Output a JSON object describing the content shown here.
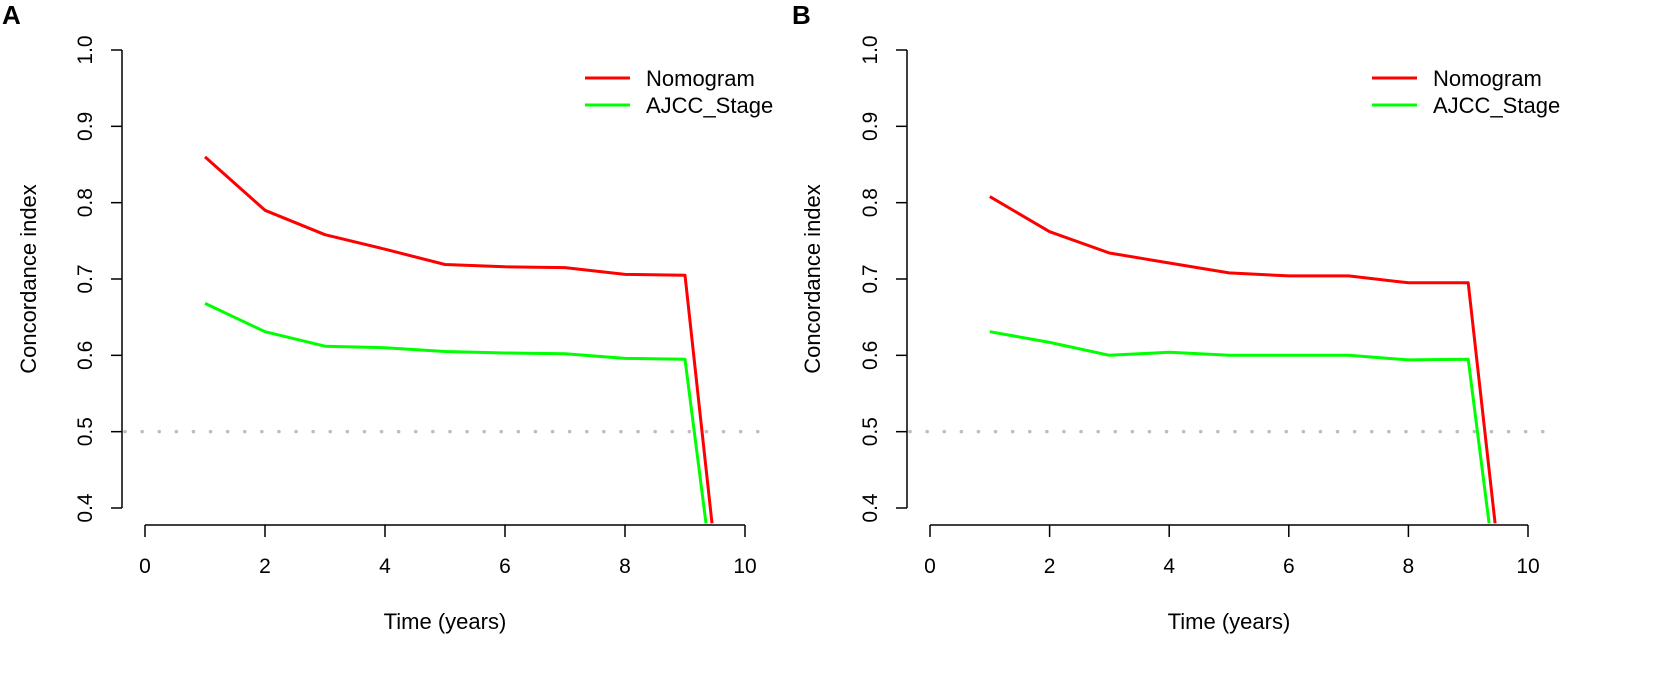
{
  "chart_data": [
    {
      "panel": "A",
      "type": "line",
      "xlabel": "Time (years)",
      "ylabel": "Concordance index",
      "xlim": [
        0,
        10
      ],
      "ylim": [
        0.4,
        1.0
      ],
      "xticks": [
        0,
        2,
        4,
        6,
        8,
        10
      ],
      "yticks": [
        0.4,
        0.5,
        0.6,
        0.7,
        0.8,
        0.9,
        1.0
      ],
      "reference_line": {
        "y": 0.5,
        "style": "dotted",
        "color": "#bdbdbd"
      },
      "legend_position": "top-right",
      "x": [
        1,
        2,
        3,
        4,
        5,
        6,
        7,
        8,
        9,
        9.45
      ],
      "series": [
        {
          "name": "Nomogram",
          "color": "#ff0000",
          "values": [
            0.86,
            0.79,
            0.758,
            0.739,
            0.719,
            0.716,
            0.715,
            0.706,
            0.705,
            0.38
          ]
        },
        {
          "name": "AJCC_Stage",
          "color": "#00ff00",
          "values": [
            0.668,
            0.631,
            0.612,
            0.61,
            0.605,
            0.603,
            0.602,
            0.596,
            0.595,
            0.38
          ]
        }
      ],
      "x_end_points": [
        9.45,
        9.35
      ]
    },
    {
      "panel": "B",
      "type": "line",
      "xlabel": "Time (years)",
      "ylabel": "Concordance index",
      "xlim": [
        0,
        10
      ],
      "ylim": [
        0.4,
        1.0
      ],
      "xticks": [
        0,
        2,
        4,
        6,
        8,
        10
      ],
      "yticks": [
        0.4,
        0.5,
        0.6,
        0.7,
        0.8,
        0.9,
        1.0
      ],
      "reference_line": {
        "y": 0.5,
        "style": "dotted",
        "color": "#bdbdbd"
      },
      "legend_position": "top-right",
      "x": [
        1,
        2,
        3,
        4,
        5,
        6,
        7,
        8,
        9,
        9.45
      ],
      "series": [
        {
          "name": "Nomogram",
          "color": "#ff0000",
          "values": [
            0.808,
            0.762,
            0.734,
            0.721,
            0.708,
            0.704,
            0.704,
            0.695,
            0.695,
            0.38
          ]
        },
        {
          "name": "AJCC_Stage",
          "color": "#00ff00",
          "values": [
            0.631,
            0.617,
            0.6,
            0.604,
            0.6,
            0.6,
            0.6,
            0.594,
            0.595,
            0.38
          ]
        }
      ],
      "x_end_points": [
        9.45,
        9.35
      ]
    }
  ]
}
